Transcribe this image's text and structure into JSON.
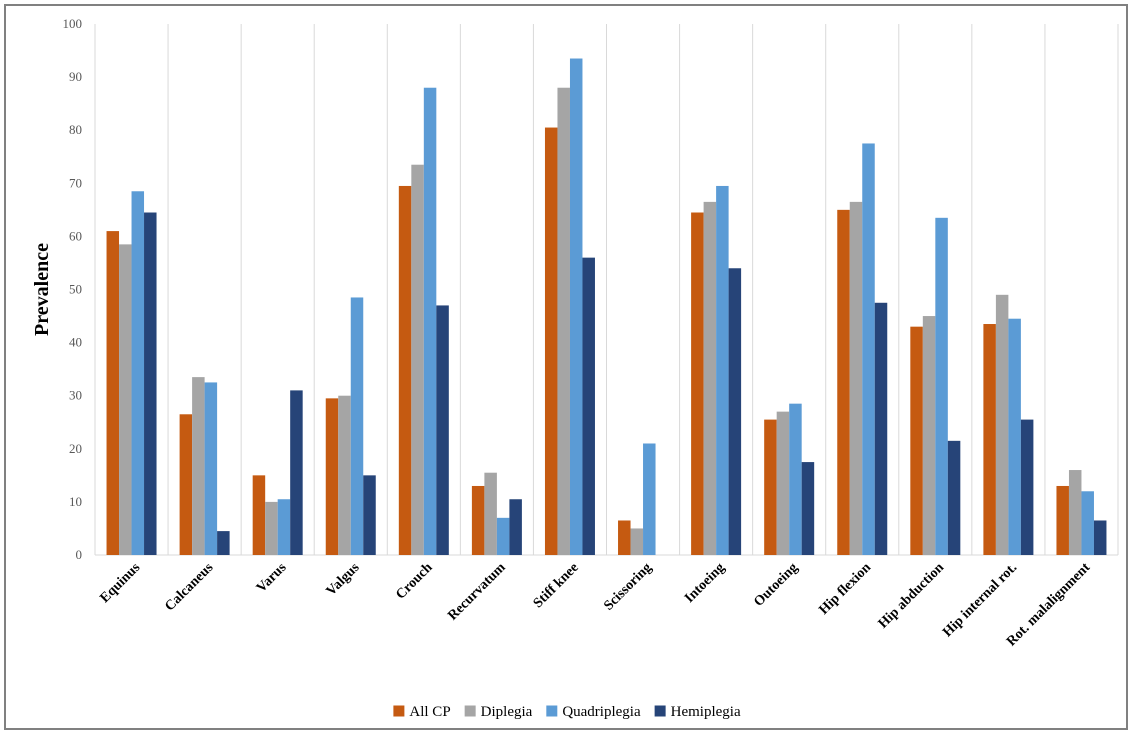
{
  "chart_data": {
    "type": "bar",
    "title": "",
    "xlabel": "",
    "ylabel": "Prevalence",
    "ylim": [
      0,
      100
    ],
    "yticks": [
      0,
      10,
      20,
      30,
      40,
      50,
      60,
      70,
      80,
      90,
      100
    ],
    "grid": "vertical category separators",
    "legend_position": "bottom",
    "categories": [
      "Equinus",
      "Calcaneus",
      "Varus",
      "Valgus",
      "Crouch",
      "Recurvatum",
      "Stiff knee",
      "Scissoring",
      "Intoeing",
      "Outoeing",
      "Hip flexion",
      "Hip abduction",
      "Hip internal rot.",
      "Rot. malalignment"
    ],
    "series": [
      {
        "name": "All CP",
        "color": "#C55A11",
        "values": [
          61,
          26.5,
          15,
          29.5,
          69.5,
          13,
          80.5,
          6.5,
          64.5,
          25.5,
          65,
          43,
          43.5,
          13
        ]
      },
      {
        "name": "Diplegia",
        "color": "#A5A5A5",
        "values": [
          58.5,
          33.5,
          10,
          30,
          73.5,
          15.5,
          88,
          5,
          66.5,
          27,
          66.5,
          45,
          49,
          16
        ]
      },
      {
        "name": "Quadriplegia",
        "color": "#5B9BD5",
        "values": [
          68.5,
          32.5,
          10.5,
          48.5,
          88,
          7,
          93.5,
          21,
          69.5,
          28.5,
          77.5,
          63.5,
          44.5,
          12
        ]
      },
      {
        "name": "Hemiplegia",
        "color": "#264478",
        "values": [
          64.5,
          4.5,
          31,
          15,
          47,
          10.5,
          56,
          0,
          54,
          17.5,
          47.5,
          21.5,
          25.5,
          6.5
        ]
      }
    ]
  }
}
